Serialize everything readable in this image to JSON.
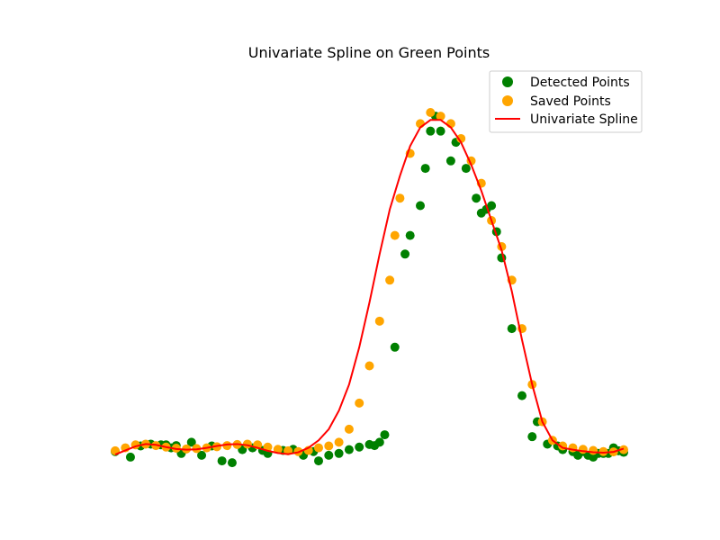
{
  "chart_data": {
    "type": "scatter",
    "title": "Univariate Spline on Green Points",
    "xlabel": "",
    "ylabel": "",
    "axes_visible": false,
    "xlim": [
      0,
      100
    ],
    "ylim": [
      0,
      100
    ],
    "legend_placement": "top-right",
    "legend": [
      {
        "label": "Detected Points",
        "kind": "scatter",
        "color": "#008000"
      },
      {
        "label": "Saved Points",
        "kind": "scatter",
        "color": "#ffa500"
      },
      {
        "label": "Univariate Spline",
        "kind": "line",
        "color": "#ff0000"
      }
    ],
    "series": [
      {
        "name": "Detected Points",
        "kind": "scatter",
        "color": "#008000",
        "points": [
          [
            0,
            2
          ],
          [
            3,
            0.5
          ],
          [
            5,
            3.5
          ],
          [
            7,
            4
          ],
          [
            9,
            3.8
          ],
          [
            10,
            3.8
          ],
          [
            11,
            3
          ],
          [
            12,
            3.6
          ],
          [
            13,
            1.5
          ],
          [
            15,
            4.5
          ],
          [
            17,
            1
          ],
          [
            19,
            3.5
          ],
          [
            21,
            -0.5
          ],
          [
            23,
            -1
          ],
          [
            25,
            2.5
          ],
          [
            27,
            3
          ],
          [
            29,
            2.3
          ],
          [
            30,
            1.5
          ],
          [
            33,
            2.3
          ],
          [
            35,
            2.6
          ],
          [
            37,
            1
          ],
          [
            39,
            2
          ],
          [
            40,
            -0.5
          ],
          [
            42,
            1
          ],
          [
            44,
            1.5
          ],
          [
            46,
            2.5
          ],
          [
            48,
            3.2
          ],
          [
            50,
            3.9
          ],
          [
            51,
            3.6
          ],
          [
            52,
            4.5
          ],
          [
            53,
            6.5
          ],
          [
            55,
            30
          ],
          [
            57,
            55
          ],
          [
            58,
            60
          ],
          [
            60,
            68
          ],
          [
            61,
            78
          ],
          [
            62,
            88
          ],
          [
            63,
            92
          ],
          [
            64,
            88
          ],
          [
            66,
            80
          ],
          [
            67,
            85
          ],
          [
            69,
            78
          ],
          [
            71,
            70
          ],
          [
            72,
            66
          ],
          [
            73,
            67
          ],
          [
            74,
            68
          ],
          [
            75,
            61
          ],
          [
            76,
            54
          ],
          [
            78,
            35
          ],
          [
            80,
            17
          ],
          [
            82,
            6
          ],
          [
            83,
            10
          ],
          [
            85,
            4
          ],
          [
            87,
            3.5
          ],
          [
            88,
            2.5
          ],
          [
            90,
            2
          ],
          [
            91,
            1
          ],
          [
            92,
            2
          ],
          [
            93,
            1
          ],
          [
            94,
            0.5
          ],
          [
            95,
            1.5
          ],
          [
            96,
            1.5
          ],
          [
            97,
            1.5
          ],
          [
            98,
            3
          ],
          [
            99,
            2.2
          ],
          [
            100,
            1.8
          ]
        ]
      },
      {
        "name": "Saved Points",
        "kind": "scatter",
        "color": "#ffa500",
        "points": [
          [
            0,
            2.2
          ],
          [
            2,
            3
          ],
          [
            4,
            3.8
          ],
          [
            6,
            4
          ],
          [
            8,
            3.6
          ],
          [
            10,
            3.2
          ],
          [
            12,
            2.9
          ],
          [
            14,
            2.7
          ],
          [
            16,
            2.8
          ],
          [
            18,
            3
          ],
          [
            20,
            3.3
          ],
          [
            22,
            3.6
          ],
          [
            24,
            3.9
          ],
          [
            26,
            4
          ],
          [
            28,
            3.8
          ],
          [
            30,
            3.2
          ],
          [
            32,
            2.6
          ],
          [
            34,
            2.2
          ],
          [
            36,
            2
          ],
          [
            38,
            2.3
          ],
          [
            40,
            3
          ],
          [
            42,
            3.5
          ],
          [
            44,
            4.5
          ],
          [
            46,
            8
          ],
          [
            48,
            15
          ],
          [
            50,
            25
          ],
          [
            52,
            37
          ],
          [
            54,
            48
          ],
          [
            55,
            60
          ],
          [
            56,
            70
          ],
          [
            58,
            82
          ],
          [
            60,
            90
          ],
          [
            62,
            93
          ],
          [
            64,
            92
          ],
          [
            66,
            90
          ],
          [
            68,
            86
          ],
          [
            70,
            80
          ],
          [
            72,
            74
          ],
          [
            74,
            64
          ],
          [
            76,
            57
          ],
          [
            78,
            48
          ],
          [
            80,
            35
          ],
          [
            82,
            20
          ],
          [
            84,
            10
          ],
          [
            86,
            5
          ],
          [
            88,
            3.5
          ],
          [
            90,
            3
          ],
          [
            92,
            2.6
          ],
          [
            94,
            2.3
          ],
          [
            96,
            2
          ],
          [
            98,
            1.9
          ],
          [
            100,
            2.5
          ]
        ]
      },
      {
        "name": "Univariate Spline",
        "kind": "line",
        "color": "#ff0000",
        "points": [
          [
            0,
            1.2
          ],
          [
            2,
            2.3
          ],
          [
            4,
            3.4
          ],
          [
            6,
            4
          ],
          [
            8,
            3.8
          ],
          [
            10,
            3.2
          ],
          [
            12,
            2.7
          ],
          [
            14,
            2.5
          ],
          [
            16,
            2.6
          ],
          [
            18,
            3
          ],
          [
            20,
            3.5
          ],
          [
            22,
            3.9
          ],
          [
            24,
            4
          ],
          [
            26,
            3.7
          ],
          [
            28,
            3
          ],
          [
            30,
            2.2
          ],
          [
            32,
            1.6
          ],
          [
            34,
            1.3
          ],
          [
            36,
            1.8
          ],
          [
            38,
            3
          ],
          [
            40,
            5
          ],
          [
            42,
            8
          ],
          [
            44,
            13
          ],
          [
            46,
            20
          ],
          [
            48,
            30
          ],
          [
            50,
            42
          ],
          [
            52,
            55
          ],
          [
            54,
            67
          ],
          [
            56,
            76
          ],
          [
            58,
            84
          ],
          [
            60,
            89
          ],
          [
            62,
            91
          ],
          [
            64,
            91
          ],
          [
            66,
            89
          ],
          [
            68,
            85
          ],
          [
            70,
            79
          ],
          [
            72,
            72
          ],
          [
            74,
            64
          ],
          [
            76,
            56
          ],
          [
            78,
            45
          ],
          [
            80,
            32
          ],
          [
            82,
            20
          ],
          [
            84,
            10
          ],
          [
            86,
            5
          ],
          [
            88,
            3
          ],
          [
            90,
            2.5
          ],
          [
            92,
            2.1
          ],
          [
            94,
            1.8
          ],
          [
            96,
            1.7
          ],
          [
            98,
            1.9
          ],
          [
            100,
            2.8
          ]
        ]
      }
    ]
  }
}
